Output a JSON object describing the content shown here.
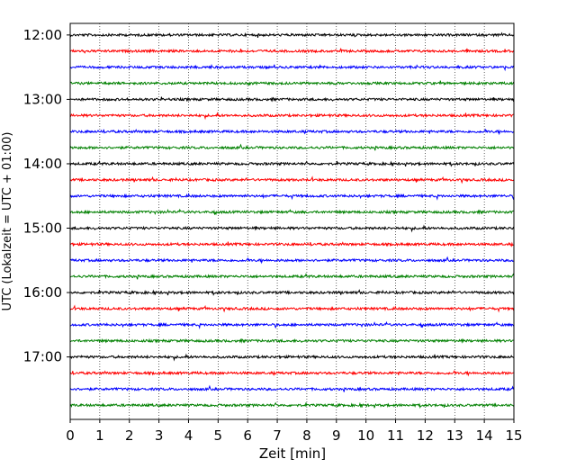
{
  "chart_data": {
    "type": "line",
    "title": "",
    "xlabel": "Zeit  [min]",
    "ylabel": "UTC (Lokalzeit = UTC + 01:00)",
    "xlim": [
      0,
      15
    ],
    "x_ticks": [
      0,
      1,
      2,
      3,
      4,
      5,
      6,
      7,
      8,
      9,
      10,
      11,
      12,
      13,
      14,
      15
    ],
    "ylim_hours": [
      11.82,
      17.97
    ],
    "y_ticks": [
      "12:00",
      "13:00",
      "14:00",
      "15:00",
      "16:00",
      "17:00"
    ],
    "y_tick_hours": [
      12,
      13,
      14,
      15,
      16,
      17
    ],
    "grid": "vertical dotted lines at each minute",
    "trace_interval_min": 15,
    "trace_colors": [
      "#000000",
      "#ff0000",
      "#0000ff",
      "#008000"
    ],
    "trace_start_times": [
      "12:00",
      "12:15",
      "12:30",
      "12:45",
      "13:00",
      "13:15",
      "13:30",
      "13:45",
      "14:00",
      "14:15",
      "14:30",
      "14:45",
      "15:00",
      "15:15",
      "15:30",
      "15:45",
      "16:00",
      "16:15",
      "16:30",
      "16:45",
      "17:00",
      "17:15",
      "17:30",
      "17:45"
    ]
  }
}
